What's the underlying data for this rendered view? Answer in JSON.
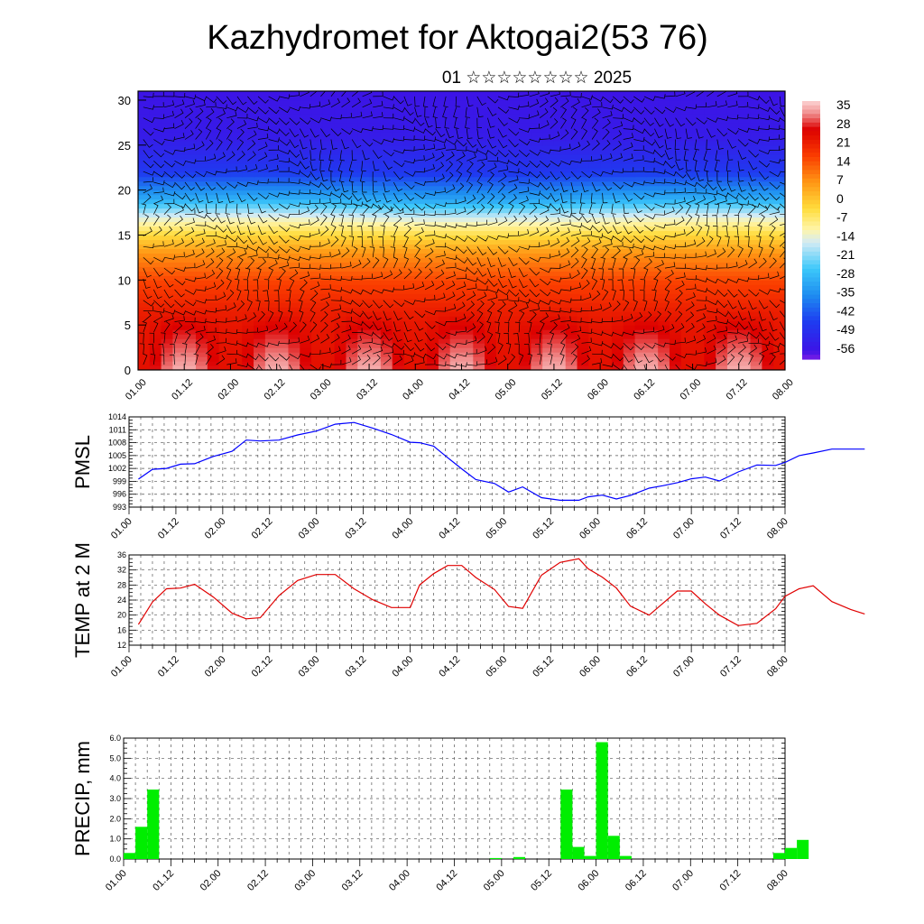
{
  "title": "Kazhydromet for Aktogai2(53 76)",
  "subtitle": "01 ☆☆☆☆☆☆☆☆ 2025",
  "x_tick_labels": [
    "01.00",
    "01.12",
    "02.00",
    "02.12",
    "03.00",
    "03.12",
    "04.00",
    "04.12",
    "05.00",
    "05.12",
    "06.00",
    "06.12",
    "07.00",
    "07.12",
    "08.00"
  ],
  "chart_data": [
    {
      "type": "heatmap",
      "title": "Kazhydromet for Aktogai2(53 76)",
      "x_range": [
        "01.00",
        "08.00"
      ],
      "ylim": [
        0,
        31
      ],
      "y_ticks": [
        "0",
        "5",
        "10",
        "15",
        "20",
        "25",
        "30"
      ],
      "colorbar_labels": [
        "35",
        "28",
        "21",
        "14",
        "7",
        "0",
        "-7",
        "-14",
        "-21",
        "-28",
        "-35",
        "-42",
        "-49",
        "-56"
      ],
      "colorbar_range": [
        -60,
        38
      ],
      "colors": {
        "hot": "#e00000",
        "warm": "#ff8c00",
        "mild": "#ffe640",
        "cold": "#1e90ff",
        "very_cold": "#2020e0",
        "min": "#9020e0"
      },
      "temperature_by_height": [
        [
          0,
          31
        ],
        [
          5,
          26
        ],
        [
          10,
          17
        ],
        [
          13,
          8
        ],
        [
          15,
          -2
        ],
        [
          17,
          -14
        ],
        [
          19,
          -30
        ],
        [
          22,
          -46
        ],
        [
          26,
          -54
        ],
        [
          31,
          -56
        ]
      ],
      "overlay": "wind barbs"
    },
    {
      "type": "line",
      "ylabel": "PMSL",
      "y_ticks": [
        "993",
        "996",
        "999",
        "1002",
        "1005",
        "1008",
        "1011",
        "1014"
      ],
      "ylim": [
        993,
        1014
      ],
      "color": "#0000ff",
      "x": [
        0.1,
        0.25,
        0.4,
        0.55,
        0.7,
        0.9,
        1.1,
        1.25,
        1.4,
        1.6,
        1.8,
        2.0,
        2.2,
        2.4,
        2.6,
        2.8,
        3.0,
        3.1,
        3.25,
        3.4,
        3.55,
        3.7,
        3.9,
        4.05,
        4.2,
        4.4,
        4.6,
        4.8,
        4.9,
        5.05,
        5.2,
        5.35,
        5.55,
        5.7,
        5.85,
        6.0,
        6.15,
        6.3,
        6.5,
        6.7,
        6.9,
        7.0,
        7.15,
        7.3,
        7.5,
        7.7,
        7.85
      ],
      "values": [
        999.5,
        1001.8,
        1002,
        1003,
        1003.1,
        1004.8,
        1006,
        1008.6,
        1008.4,
        1008.6,
        1009.8,
        1010.7,
        1012.3,
        1012.7,
        1011.4,
        1009.9,
        1008.1,
        1008,
        1007.2,
        1004.5,
        1001.9,
        999.4,
        998.5,
        996.5,
        997.7,
        995.2,
        994.6,
        994.6,
        995.4,
        995.8,
        994.9,
        995.7,
        997.4,
        998,
        998.7,
        999.6,
        1000,
        999.1,
        1001.2,
        1002.8,
        1002.7,
        1003.4,
        1005,
        1005.6,
        1006.5,
        1006.5,
        1006.5
      ]
    },
    {
      "type": "line",
      "ylabel": "TEMP at 2 M",
      "y_ticks": [
        "12",
        "16",
        "20",
        "24",
        "28",
        "32",
        "36"
      ],
      "ylim": [
        12,
        36
      ],
      "color": "#e00000",
      "x": [
        0.1,
        0.25,
        0.4,
        0.55,
        0.7,
        0.9,
        1.1,
        1.25,
        1.4,
        1.6,
        1.8,
        2.0,
        2.2,
        2.4,
        2.6,
        2.8,
        3.0,
        3.1,
        3.25,
        3.4,
        3.55,
        3.7,
        3.9,
        4.05,
        4.2,
        4.4,
        4.6,
        4.8,
        4.9,
        5.05,
        5.2,
        5.35,
        5.55,
        5.7,
        5.85,
        6.0,
        6.15,
        6.3,
        6.5,
        6.7,
        6.9,
        7.0,
        7.15,
        7.3,
        7.5,
        7.7,
        7.85
      ],
      "values": [
        17.5,
        23.5,
        27,
        27.2,
        28.2,
        24.8,
        20.5,
        19,
        19.3,
        25.2,
        29.2,
        30.8,
        30.8,
        27,
        24.1,
        22,
        22,
        28,
        31,
        33.2,
        33.2,
        30,
        26.8,
        22.3,
        21.8,
        30.6,
        34,
        35,
        32.3,
        30.1,
        27.2,
        22.4,
        20,
        23.2,
        26.4,
        26.4,
        23,
        20,
        17.2,
        17.8,
        21.7,
        25,
        27,
        27.8,
        23.6,
        21.5,
        20.3
      ]
    },
    {
      "type": "bar",
      "ylabel": "PRECIP, mm",
      "y_ticks": [
        "0.0",
        "1.0",
        "2.0",
        "3.0",
        "4.0",
        "5.0",
        "6.0"
      ],
      "ylim": [
        0,
        6
      ],
      "color": "#00ee00",
      "bin_width": 0.125,
      "x": [
        0.0625,
        0.1875,
        0.3125,
        3.9375,
        4.1875,
        4.6875,
        4.8125,
        4.9375,
        5.0625,
        5.1875,
        5.3125,
        6.9375,
        7.0625,
        7.1875
      ],
      "values": [
        0.3,
        1.6,
        3.45,
        0.05,
        0.1,
        3.45,
        0.6,
        0.15,
        5.8,
        1.15,
        0.15,
        0.3,
        0.55,
        0.95
      ]
    }
  ]
}
